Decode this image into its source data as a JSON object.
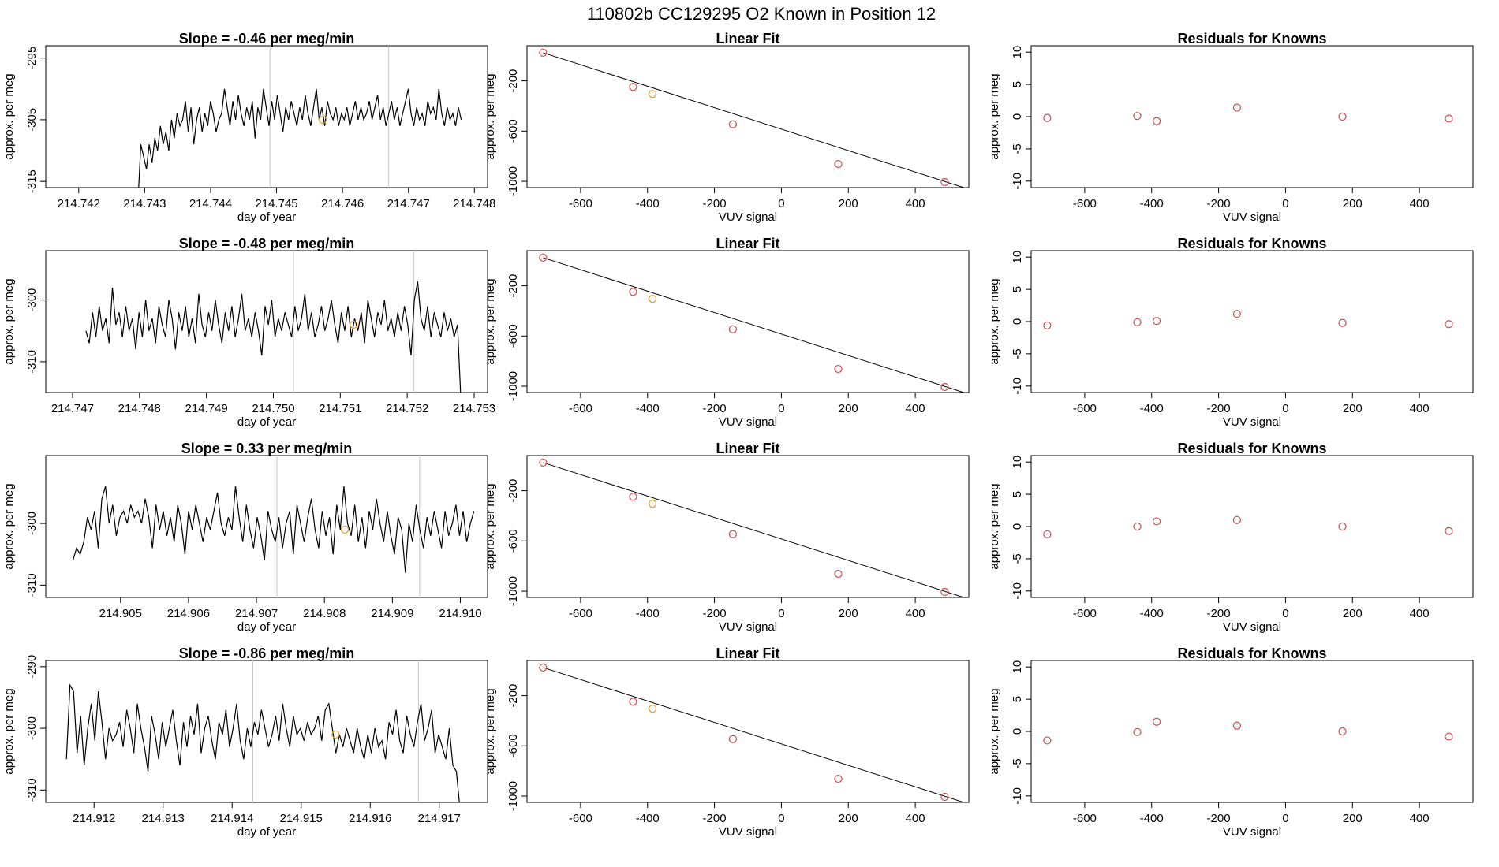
{
  "page_title": "110802b      CC129295    O2 Known in Position  12",
  "colors": {
    "line": "#000000",
    "guide": "#c8c8c8",
    "fit_point": "#cc4c4c",
    "known_point": "#e89a2a",
    "frame": "#000000"
  },
  "chart_data": [
    {
      "type": "line",
      "row": 0,
      "panel": "time-series",
      "title": "Slope =  -0.46  per meg/min",
      "xlabel": "day of year",
      "ylabel": "approx. per meg",
      "xlim": [
        214.7415,
        214.7482
      ],
      "ylim": [
        -316,
        -293
      ],
      "xticks": [
        214.742,
        214.743,
        214.744,
        214.745,
        214.746,
        214.747,
        214.748
      ],
      "xtick_labels": [
        "214.742",
        "214.743",
        "214.744",
        "214.745",
        "214.746",
        "214.747",
        "214.748"
      ],
      "yticks": [
        -295,
        -305,
        -315
      ],
      "ytick_labels": [
        "-295",
        "-305",
        "-315"
      ],
      "vlines": [
        214.7449,
        214.7467
      ],
      "x_start": 214.7429,
      "x_end": 214.7478,
      "y": [
        -318,
        -309,
        -311,
        -313,
        -309,
        -312,
        -308,
        -310,
        -306,
        -309,
        -307,
        -310,
        -305,
        -308,
        -304,
        -306,
        -305,
        -302,
        -307,
        -303,
        -309,
        -305,
        -303,
        -307,
        -304,
        -306,
        -302,
        -304,
        -307,
        -305,
        -304,
        -300,
        -303,
        -306,
        -302,
        -305,
        -301,
        -304,
        -306,
        -303,
        -305,
        -302,
        -308,
        -303,
        -305,
        -300,
        -303,
        -306,
        -302,
        -305,
        -301,
        -304,
        -307,
        -303,
        -305,
        -302,
        -304,
        -306,
        -303,
        -305,
        -301,
        -304,
        -306,
        -303,
        -300,
        -305,
        -303,
        -306,
        -302,
        -304,
        -305,
        -303,
        -306,
        -304,
        -305,
        -303,
        -306,
        -304,
        -302,
        -305,
        -303,
        -305,
        -304,
        -302,
        -305,
        -303,
        -301,
        -305,
        -303,
        -306,
        -304,
        -302,
        -305,
        -303,
        -306,
        -304,
        -302,
        -300,
        -304,
        -306,
        -303,
        -305,
        -304,
        -306,
        -302,
        -304,
        -303,
        -305,
        -300,
        -304,
        -306,
        -303,
        -305,
        -304,
        -306,
        -303,
        -305
      ],
      "marker": {
        "x": 214.7457,
        "y": -305
      }
    },
    {
      "type": "scatter",
      "row": 0,
      "panel": "linear-fit",
      "title": "Linear Fit",
      "xlabel": "VUV signal",
      "ylabel": "approx. per meg",
      "xlim": [
        -760,
        560
      ],
      "ylim": [
        -1050,
        80
      ],
      "xticks": [
        -600,
        -400,
        -200,
        0,
        200,
        400
      ],
      "xtick_labels": [
        "-600",
        "-400",
        "-200",
        "0",
        "200",
        "400"
      ],
      "yticks": [
        -200,
        -600,
        -1000
      ],
      "ytick_labels": [
        "-200",
        "-600",
        "-1000"
      ],
      "x": [
        -712,
        -443,
        -385,
        -145,
        170,
        488
      ],
      "y": [
        24,
        -248,
        -304,
        -546,
        -862,
        -1006
      ],
      "known_index": 2,
      "fit_line": {
        "x": [
          -712,
          545
        ],
        "y": [
          24,
          -1050
        ]
      }
    },
    {
      "type": "scatter",
      "row": 0,
      "panel": "residuals",
      "title": "Residuals for Knowns",
      "xlabel": "VUV signal",
      "ylabel": "approx. per meg",
      "xlim": [
        -760,
        560
      ],
      "ylim": [
        -11,
        11
      ],
      "xticks": [
        -600,
        -400,
        -200,
        0,
        200,
        400
      ],
      "xtick_labels": [
        "-600",
        "-400",
        "-200",
        "0",
        "200",
        "400"
      ],
      "yticks": [
        10,
        5,
        0,
        -5,
        -10
      ],
      "ytick_labels": [
        "10",
        "5",
        "0",
        "-5",
        "-10"
      ],
      "x": [
        -712,
        -443,
        -385,
        -145,
        170,
        488
      ],
      "y": [
        -0.2,
        0.1,
        -0.7,
        1.4,
        0.0,
        -0.3
      ]
    },
    {
      "type": "line",
      "row": 1,
      "panel": "time-series",
      "title": "Slope =  -0.48  per meg/min",
      "xlabel": "day of year",
      "ylabel": "approx. per meg",
      "xlim": [
        214.7466,
        214.7532
      ],
      "ylim": [
        -315,
        -292
      ],
      "xticks": [
        214.747,
        214.748,
        214.749,
        214.75,
        214.751,
        214.752,
        214.753
      ],
      "xtick_labels": [
        "214.747",
        "214.748",
        "214.749",
        "214.750",
        "214.751",
        "214.752",
        "214.753"
      ],
      "yticks": [
        -300,
        -310
      ],
      "ytick_labels": [
        "-300",
        "-310"
      ],
      "vlines": [
        214.7503,
        214.7521
      ],
      "x_start": 214.7472,
      "x_end": 214.7528,
      "y": [
        -305,
        -307,
        -302,
        -306,
        -301,
        -305,
        -303,
        -307,
        -298,
        -304,
        -302,
        -306,
        -301,
        -305,
        -303,
        -308,
        -302,
        -306,
        -300,
        -305,
        -303,
        -307,
        -301,
        -304,
        -306,
        -300,
        -303,
        -308,
        -302,
        -305,
        -301,
        -306,
        -303,
        -307,
        -299,
        -304,
        -306,
        -302,
        -305,
        -300,
        -304,
        -307,
        -302,
        -305,
        -301,
        -306,
        -303,
        -299,
        -305,
        -303,
        -306,
        -302,
        -305,
        -309,
        -301,
        -304,
        -300,
        -306,
        -303,
        -305,
        -302,
        -304,
        -306,
        -301,
        -305,
        -303,
        -299,
        -305,
        -302,
        -306,
        -304,
        -301,
        -305,
        -303,
        -300,
        -304,
        -307,
        -302,
        -305,
        -301,
        -306,
        -303,
        -305,
        -302,
        -307,
        -300,
        -303,
        -306,
        -302,
        -304,
        -300,
        -305,
        -303,
        -306,
        -302,
        -305,
        -301,
        -304,
        -309,
        -300,
        -297,
        -303,
        -305,
        -301,
        -306,
        -302,
        -304,
        -306,
        -302,
        -305,
        -303,
        -306,
        -304,
        -316
      ],
      "marker": {
        "x": 214.7512,
        "y": -304
      }
    },
    {
      "type": "scatter",
      "row": 1,
      "panel": "linear-fit",
      "title": "Linear Fit",
      "xlabel": "VUV signal",
      "ylabel": "approx. per meg",
      "xlim": [
        -760,
        560
      ],
      "ylim": [
        -1050,
        80
      ],
      "xticks": [
        -600,
        -400,
        -200,
        0,
        200,
        400
      ],
      "xtick_labels": [
        "-600",
        "-400",
        "-200",
        "0",
        "200",
        "400"
      ],
      "yticks": [
        -200,
        -600,
        -1000
      ],
      "ytick_labels": [
        "-200",
        "-600",
        "-1000"
      ],
      "x": [
        -712,
        -443,
        -385,
        -145,
        170,
        488
      ],
      "y": [
        24,
        -248,
        -304,
        -546,
        -862,
        -1006
      ],
      "known_index": 2,
      "fit_line": {
        "x": [
          -712,
          545
        ],
        "y": [
          24,
          -1050
        ]
      }
    },
    {
      "type": "scatter",
      "row": 1,
      "panel": "residuals",
      "title": "Residuals for Knowns",
      "xlabel": "VUV signal",
      "ylabel": "approx. per meg",
      "xlim": [
        -760,
        560
      ],
      "ylim": [
        -11,
        11
      ],
      "xticks": [
        -600,
        -400,
        -200,
        0,
        200,
        400
      ],
      "xtick_labels": [
        "-600",
        "-400",
        "-200",
        "0",
        "200",
        "400"
      ],
      "yticks": [
        10,
        5,
        0,
        -5,
        -10
      ],
      "ytick_labels": [
        "10",
        "5",
        "0",
        "-5",
        "-10"
      ],
      "x": [
        -712,
        -443,
        -385,
        -145,
        170,
        488
      ],
      "y": [
        -0.6,
        -0.1,
        0.1,
        1.2,
        -0.2,
        -0.4
      ]
    },
    {
      "type": "line",
      "row": 2,
      "panel": "time-series",
      "title": "Slope =  0.33  per meg/min",
      "xlabel": "day of year",
      "ylabel": "approx. per meg",
      "xlim": [
        214.9039,
        214.9104
      ],
      "ylim": [
        -312,
        -289
      ],
      "xticks": [
        214.905,
        214.906,
        214.907,
        214.908,
        214.909,
        214.91
      ],
      "xtick_labels": [
        "214.905",
        "214.906",
        "214.907",
        "214.908",
        "214.909",
        "214.910"
      ],
      "yticks": [
        -300,
        -310
      ],
      "ytick_labels": [
        "-300",
        "-310"
      ],
      "vlines": [
        214.9073,
        214.9094
      ],
      "x_start": 214.9043,
      "x_end": 214.9102,
      "y": [
        -306,
        -304,
        -305,
        -303,
        -299,
        -301,
        -298,
        -304,
        -296,
        -294,
        -300,
        -297,
        -302,
        -299,
        -298,
        -300,
        -297,
        -299,
        -298,
        -300,
        -296,
        -299,
        -304,
        -297,
        -301,
        -298,
        -302,
        -299,
        -303,
        -297,
        -300,
        -305,
        -298,
        -301,
        -297,
        -300,
        -303,
        -299,
        -301,
        -298,
        -295,
        -300,
        -302,
        -299,
        -301,
        -294,
        -299,
        -303,
        -297,
        -301,
        -304,
        -299,
        -302,
        -306,
        -298,
        -301,
        -303,
        -299,
        -304,
        -300,
        -298,
        -305,
        -297,
        -300,
        -303,
        -299,
        -296,
        -301,
        -304,
        -298,
        -302,
        -299,
        -305,
        -297,
        -301,
        -294,
        -300,
        -302,
        -297,
        -303,
        -299,
        -304,
        -298,
        -301,
        -296,
        -300,
        -303,
        -298,
        -302,
        -305,
        -299,
        -301,
        -308,
        -300,
        -303,
        -297,
        -301,
        -304,
        -299,
        -302,
        -298,
        -301,
        -304,
        -298,
        -302,
        -300,
        -297,
        -302,
        -298,
        -303,
        -300,
        -298
      ],
      "marker": {
        "x": 214.9083,
        "y": -301
      }
    },
    {
      "type": "scatter",
      "row": 2,
      "panel": "linear-fit",
      "title": "Linear Fit",
      "xlabel": "VUV signal",
      "ylabel": "approx. per meg",
      "xlim": [
        -760,
        560
      ],
      "ylim": [
        -1050,
        80
      ],
      "xticks": [
        -600,
        -400,
        -200,
        0,
        200,
        400
      ],
      "xtick_labels": [
        "-600",
        "-400",
        "-200",
        "0",
        "200",
        "400"
      ],
      "yticks": [
        -200,
        -600,
        -1000
      ],
      "ytick_labels": [
        "-200",
        "-600",
        "-1000"
      ],
      "x": [
        -712,
        -443,
        -385,
        -145,
        170,
        488
      ],
      "y": [
        24,
        -248,
        -304,
        -546,
        -862,
        -1006
      ],
      "known_index": 2,
      "fit_line": {
        "x": [
          -712,
          545
        ],
        "y": [
          24,
          -1050
        ]
      }
    },
    {
      "type": "scatter",
      "row": 2,
      "panel": "residuals",
      "title": "Residuals for Knowns",
      "xlabel": "VUV signal",
      "ylabel": "approx. per meg",
      "xlim": [
        -760,
        560
      ],
      "ylim": [
        -11,
        11
      ],
      "xticks": [
        -600,
        -400,
        -200,
        0,
        200,
        400
      ],
      "xtick_labels": [
        "-600",
        "-400",
        "-200",
        "0",
        "200",
        "400"
      ],
      "yticks": [
        10,
        5,
        0,
        -5,
        -10
      ],
      "ytick_labels": [
        "10",
        "5",
        "0",
        "-5",
        "-10"
      ],
      "x": [
        -712,
        -443,
        -385,
        -145,
        170,
        488
      ],
      "y": [
        -1.2,
        0.0,
        0.8,
        1.0,
        0.0,
        -0.7
      ]
    },
    {
      "type": "line",
      "row": 3,
      "panel": "time-series",
      "title": "Slope =  -0.86  per meg/min",
      "xlabel": "day of year",
      "ylabel": "approx. per meg",
      "xlim": [
        214.9113,
        214.9177
      ],
      "ylim": [
        -312,
        -289
      ],
      "xticks": [
        214.912,
        214.913,
        214.914,
        214.915,
        214.916,
        214.917
      ],
      "xtick_labels": [
        "214.912",
        "214.913",
        "214.914",
        "214.915",
        "214.916",
        "214.917"
      ],
      "yticks": [
        -290,
        -300,
        -310
      ],
      "ytick_labels": [
        "-290",
        "-300",
        "-310"
      ],
      "vlines": [
        214.9143,
        214.9167
      ],
      "x_start": 214.9116,
      "x_end": 214.9173,
      "y": [
        -305,
        -293,
        -294,
        -304,
        -298,
        -306,
        -300,
        -296,
        -302,
        -294,
        -299,
        -305,
        -300,
        -302,
        -301,
        -299,
        -303,
        -297,
        -300,
        -304,
        -296,
        -300,
        -303,
        -307,
        -298,
        -301,
        -305,
        -299,
        -303,
        -300,
        -297,
        -302,
        -306,
        -299,
        -303,
        -298,
        -301,
        -296,
        -304,
        -300,
        -298,
        -302,
        -305,
        -299,
        -301,
        -297,
        -303,
        -300,
        -296,
        -302,
        -305,
        -300,
        -303,
        -299,
        -301,
        -297,
        -300,
        -303,
        -301,
        -298,
        -302,
        -296,
        -300,
        -303,
        -298,
        -301,
        -300,
        -302,
        -299,
        -301,
        -300,
        -298,
        -302,
        -297,
        -296,
        -300,
        -304,
        -301,
        -303,
        -300,
        -302,
        -304,
        -300,
        -303,
        -305,
        -301,
        -304,
        -300,
        -303,
        -302,
        -305,
        -299,
        -301,
        -297,
        -302,
        -304,
        -298,
        -301,
        -303,
        -299,
        -296,
        -302,
        -300,
        -297,
        -304,
        -301,
        -303,
        -305,
        -300,
        -306,
        -307,
        -313
      ],
      "marker": {
        "x": 214.9155,
        "y": -301
      }
    },
    {
      "type": "scatter",
      "row": 3,
      "panel": "linear-fit",
      "title": "Linear Fit",
      "xlabel": "VUV signal",
      "ylabel": "approx. per meg",
      "xlim": [
        -760,
        560
      ],
      "ylim": [
        -1050,
        80
      ],
      "xticks": [
        -600,
        -400,
        -200,
        0,
        200,
        400
      ],
      "xtick_labels": [
        "-600",
        "-400",
        "-200",
        "0",
        "200",
        "400"
      ],
      "yticks": [
        -200,
        -600,
        -1000
      ],
      "ytick_labels": [
        "-200",
        "-600",
        "-1000"
      ],
      "x": [
        -712,
        -443,
        -385,
        -145,
        170,
        488
      ],
      "y": [
        24,
        -248,
        -304,
        -546,
        -862,
        -1006
      ],
      "known_index": 2,
      "fit_line": {
        "x": [
          -712,
          545
        ],
        "y": [
          24,
          -1050
        ]
      }
    },
    {
      "type": "scatter",
      "row": 3,
      "panel": "residuals",
      "title": "Residuals for Knowns",
      "xlabel": "VUV signal",
      "ylabel": "approx. per meg",
      "xlim": [
        -760,
        560
      ],
      "ylim": [
        -11,
        11
      ],
      "xticks": [
        -600,
        -400,
        -200,
        0,
        200,
        400
      ],
      "xtick_labels": [
        "-600",
        "-400",
        "-200",
        "0",
        "200",
        "400"
      ],
      "yticks": [
        10,
        5,
        0,
        -5,
        -10
      ],
      "ytick_labels": [
        "10",
        "5",
        "0",
        "-5",
        "-10"
      ],
      "x": [
        -712,
        -443,
        -385,
        -145,
        170,
        488
      ],
      "y": [
        -1.4,
        -0.1,
        1.5,
        0.9,
        0.0,
        -0.8
      ]
    }
  ]
}
